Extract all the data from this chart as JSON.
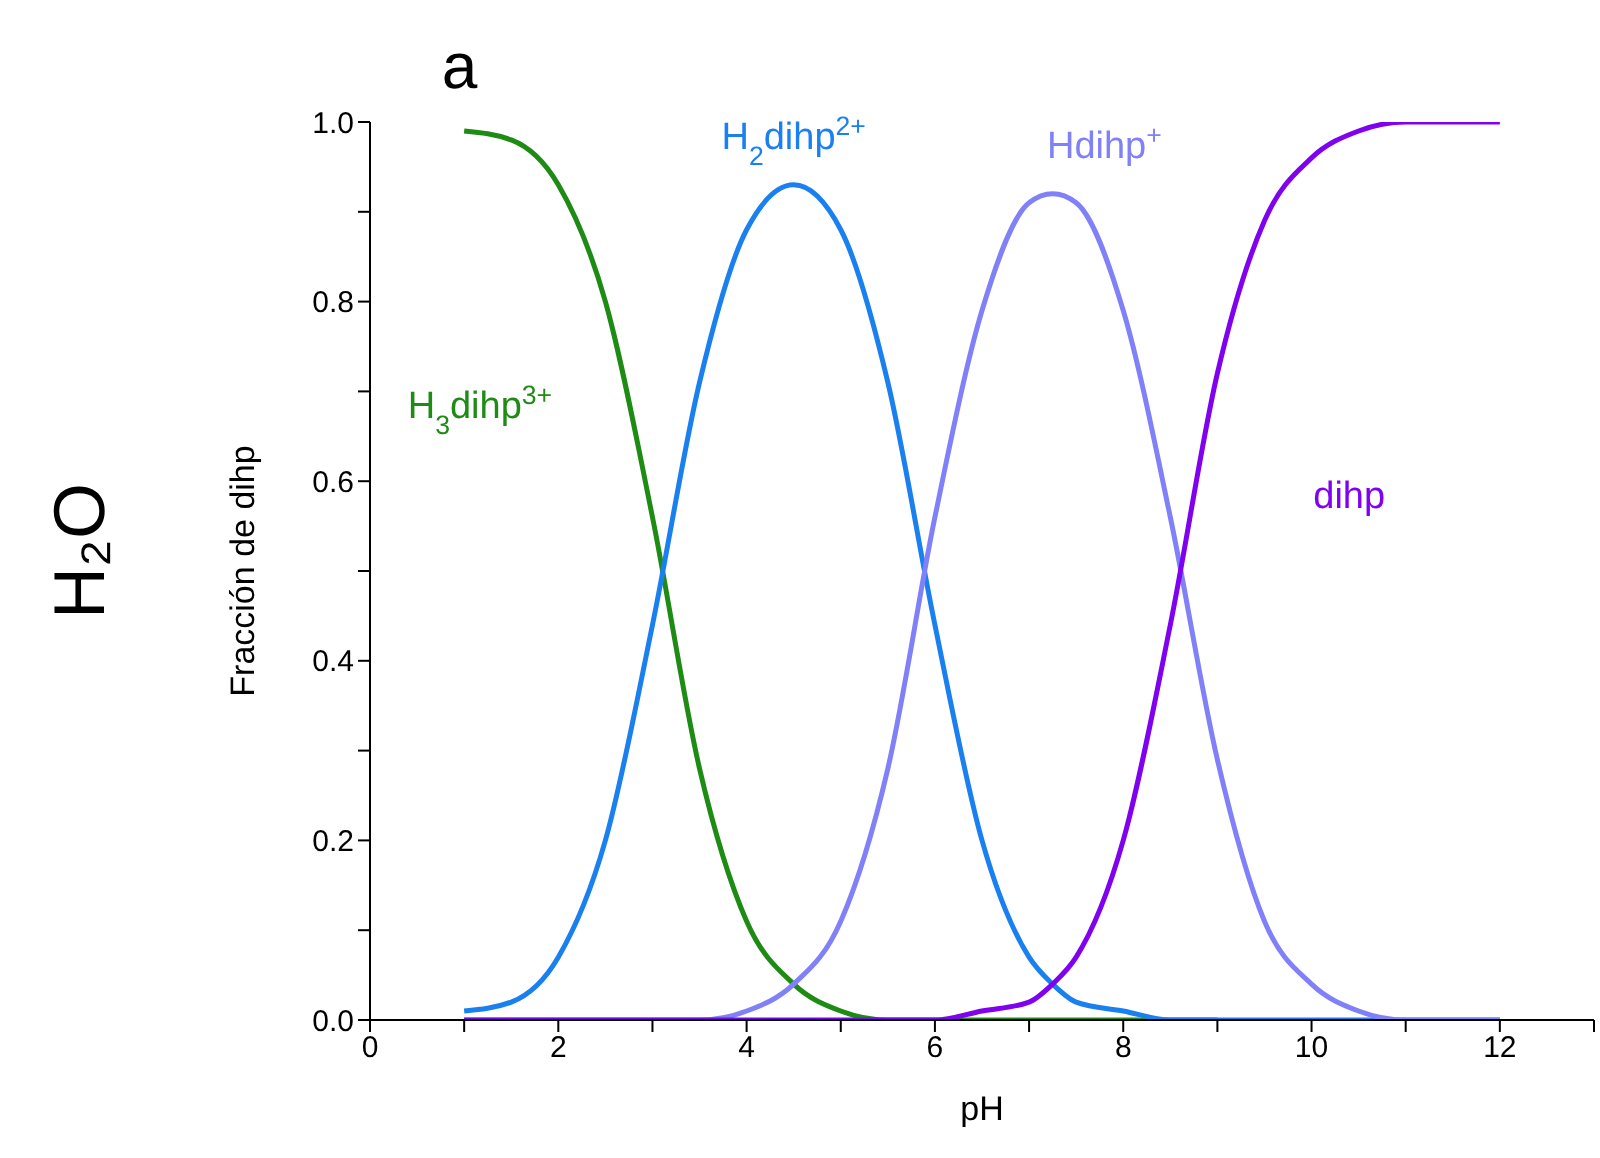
{
  "chart_data": {
    "type": "line",
    "title": "a",
    "xlabel": "pH",
    "ylabel": "Fracción de dihp",
    "annotations": [
      "H₂O"
    ],
    "x": [
      1,
      1.5,
      2,
      2.5,
      3,
      3.5,
      4,
      4.5,
      5,
      5.5,
      6,
      6.5,
      7,
      7.25,
      7.5,
      8,
      8.5,
      9,
      9.5,
      10,
      10.5,
      11,
      11.5,
      12
    ],
    "series": [
      {
        "name": "H$_{3}$dihp$^{3+}$",
        "color": "#1e8c14",
        "values": [
          0.99,
          0.98,
          0.93,
          0.8,
          0.56,
          0.28,
          0.11,
          0.04,
          0.01,
          0,
          0,
          0,
          0,
          0,
          0,
          0,
          0,
          0,
          null,
          null,
          null,
          null,
          null,
          null
        ]
      },
      {
        "name": "H$_{2}$dihp$^{2+}$",
        "color": "#1a80f0",
        "values": [
          0.01,
          0.02,
          0.07,
          0.2,
          0.44,
          0.71,
          0.88,
          0.93,
          0.88,
          0.71,
          0.44,
          0.2,
          0.07,
          0.04,
          0.02,
          0.01,
          0,
          0,
          0,
          0,
          0,
          0,
          0,
          0
        ]
      },
      {
        "name": "Hdihp$^{+}$",
        "color": "#8080f8",
        "values": [
          0,
          0,
          0,
          0,
          0,
          0,
          0.01,
          0.04,
          0.11,
          0.28,
          0.56,
          0.79,
          0.91,
          0.92,
          0.91,
          0.79,
          0.56,
          0.29,
          0.11,
          0.04,
          0.01,
          0,
          0,
          0
        ]
      },
      {
        "name": "dihp",
        "color": "#8000f0",
        "values": [
          0,
          0,
          0,
          0,
          0,
          0,
          0,
          0,
          0,
          0,
          0,
          0.01,
          0.02,
          0.04,
          0.07,
          0.2,
          0.44,
          0.72,
          0.89,
          0.96,
          0.99,
          1.0,
          1.0,
          1.0
        ]
      }
    ],
    "xlim": [
      0,
      13
    ],
    "ylim": [
      0,
      1.0
    ],
    "xticks": [
      0,
      {
        "value": 1,
        "label": null
      },
      2,
      {
        "value": 3,
        "label": null
      },
      4,
      {
        "value": 5,
        "label": null
      },
      6,
      {
        "value": 7,
        "label": null
      },
      8,
      {
        "value": 9,
        "label": null
      },
      10,
      {
        "value": 11,
        "label": null
      },
      12,
      {
        "value": 13,
        "label": null
      }
    ],
    "yticks": [
      {
        "value": 0,
        "label": "0.0"
      },
      {
        "value": 0.1,
        "label": null
      },
      {
        "value": 0.2,
        "label": "0.2"
      },
      {
        "value": 0.3,
        "label": null
      },
      {
        "value": 0.4,
        "label": "0.4"
      },
      {
        "value": 0.5,
        "label": null
      },
      {
        "value": 0.6,
        "label": "0.6"
      },
      {
        "value": 0.7,
        "label": null
      },
      {
        "value": 0.8,
        "label": "0.8"
      },
      {
        "value": 0.9,
        "label": null
      },
      {
        "value": 1.0,
        "label": "1.0"
      }
    ],
    "grid": false,
    "legend": false,
    "marker": "none",
    "line_style": "solid"
  }
}
